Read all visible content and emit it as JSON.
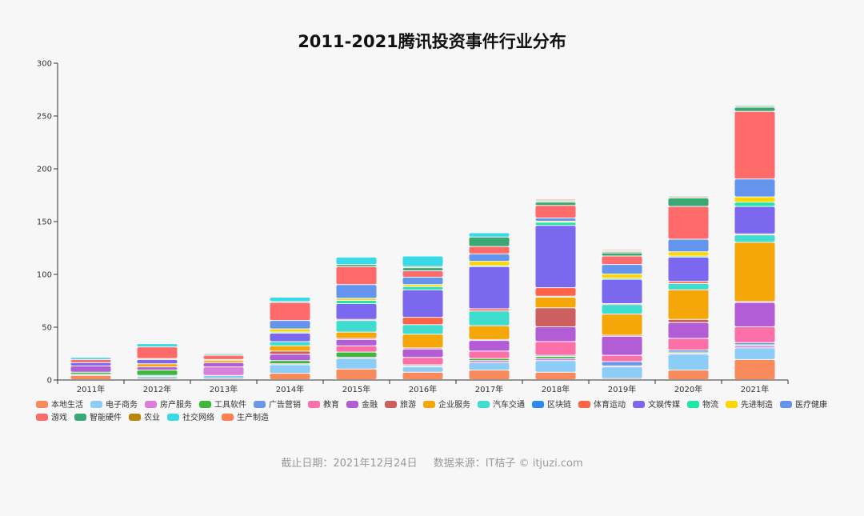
{
  "chart_data": {
    "type": "bar",
    "stacked": true,
    "title": "2011-2021腾讯投资事件行业分布",
    "categories": [
      "2011年",
      "2012年",
      "2013年",
      "2014年",
      "2015年",
      "2016年",
      "2017年",
      "2018年",
      "2019年",
      "2020年",
      "2021年"
    ],
    "ylim": [
      0,
      300
    ],
    "yticks": [
      0,
      50,
      100,
      150,
      200,
      250,
      300
    ],
    "grid": false,
    "legend_position": "bottom",
    "series": [
      {
        "name": "本地生活",
        "color": "#f88a5c",
        "values": [
          4,
          1,
          1,
          6,
          10,
          7,
          9,
          7,
          1,
          9,
          19
        ]
      },
      {
        "name": "电子商务",
        "color": "#8ccdf8",
        "values": [
          1,
          2,
          3,
          8,
          10,
          5,
          7,
          11,
          11,
          15,
          11
        ]
      },
      {
        "name": "房产服务",
        "color": "#db7fdb",
        "values": [
          0,
          1,
          8,
          1,
          1,
          1,
          2,
          2,
          1,
          1,
          2
        ]
      },
      {
        "name": "工具软件",
        "color": "#3cb93c",
        "values": [
          2,
          5,
          0,
          3,
          5,
          1,
          2,
          2,
          0,
          1,
          1
        ]
      },
      {
        "name": "广告营销",
        "color": "#6a99e8",
        "values": [
          0,
          0,
          0,
          0,
          0,
          0,
          0,
          1,
          4,
          2,
          2
        ]
      },
      {
        "name": "教育",
        "color": "#fc6fa8",
        "values": [
          0,
          0,
          0,
          0,
          6,
          7,
          7,
          13,
          6,
          11,
          15
        ]
      },
      {
        "name": "金融",
        "color": "#b25cd5",
        "values": [
          6,
          3,
          4,
          6,
          6,
          8,
          10,
          14,
          18,
          15,
          23
        ]
      },
      {
        "name": "旅游",
        "color": "#cc5f5f",
        "values": [
          0,
          0,
          0,
          3,
          1,
          1,
          1,
          18,
          1,
          3,
          1
        ]
      },
      {
        "name": "企业服务",
        "color": "#f5a70a",
        "values": [
          0,
          3,
          2,
          5,
          6,
          13,
          13,
          10,
          20,
          28,
          56
        ]
      },
      {
        "name": "汽车交通",
        "color": "#3fdcd0",
        "values": [
          0,
          0,
          0,
          4,
          11,
          9,
          14,
          1,
          9,
          6,
          7
        ]
      },
      {
        "name": "区块链",
        "color": "#2e89f0",
        "values": [
          0,
          0,
          0,
          0,
          0,
          0,
          0,
          0,
          0,
          0,
          0
        ]
      },
      {
        "name": "体育运动",
        "color": "#ff6347",
        "values": [
          0,
          0,
          0,
          0,
          1,
          7,
          2,
          8,
          1,
          2,
          1
        ]
      },
      {
        "name": "文娱传媒",
        "color": "#7b68ee",
        "values": [
          3,
          4,
          0,
          8,
          15,
          26,
          40,
          59,
          23,
          23,
          26
        ]
      },
      {
        "name": "物流",
        "color": "#1de8a8",
        "values": [
          0,
          0,
          0,
          1,
          3,
          3,
          1,
          3,
          1,
          1,
          4
        ]
      },
      {
        "name": "先进制造",
        "color": "#fed700",
        "values": [
          0,
          1,
          1,
          3,
          2,
          2,
          4,
          1,
          4,
          4,
          5
        ]
      },
      {
        "name": "医疗健康",
        "color": "#6495ed",
        "values": [
          0,
          0,
          0,
          8,
          13,
          7,
          7,
          3,
          9,
          12,
          17
        ]
      },
      {
        "name": "游戏",
        "color": "#ff6b6b",
        "values": [
          3,
          11,
          4,
          17,
          17,
          6,
          7,
          12,
          8,
          31,
          64
        ]
      },
      {
        "name": "智能硬件",
        "color": "#3aa876",
        "values": [
          0,
          0,
          1,
          1,
          2,
          3,
          9,
          3,
          3,
          8,
          4
        ]
      },
      {
        "name": "农业",
        "color": "#b8860b",
        "values": [
          0,
          0,
          0,
          0,
          0,
          1,
          0,
          1,
          1,
          1,
          1
        ]
      },
      {
        "name": "社交网络",
        "color": "#39d9e8",
        "values": [
          2,
          3,
          1,
          4,
          7,
          10,
          4,
          1,
          1,
          1,
          1
        ]
      },
      {
        "name": "生产制造",
        "color": "#ff7f50",
        "values": [
          0,
          0,
          0,
          0,
          0,
          0,
          0,
          1,
          1,
          0,
          0
        ]
      }
    ]
  },
  "footer": {
    "cutoff": "截止日期：2021年12月24日",
    "source": "数据来源：IT桔子 © itjuzi.com"
  }
}
